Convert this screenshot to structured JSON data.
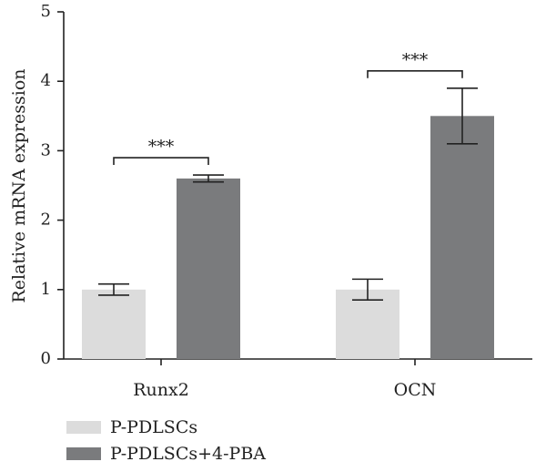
{
  "chart_data": {
    "type": "bar",
    "categories": [
      "Runx2",
      "OCN"
    ],
    "series": [
      {
        "name": "P-PDLSCs",
        "values": [
          1.0,
          1.0
        ],
        "errors": [
          0.08,
          0.15
        ],
        "color": "#dcdcdc"
      },
      {
        "name": "P-PDLSCs+4-PBA",
        "values": [
          2.6,
          3.5
        ],
        "errors": [
          0.05,
          0.4
        ],
        "color": "#7a7b7d"
      }
    ],
    "xlabel": "",
    "ylabel": "Relative mRNA expression",
    "ylim": [
      0,
      5
    ],
    "yticks": [
      "0",
      "1",
      "2",
      "3",
      "4",
      "5"
    ],
    "significance": [
      {
        "category": "Runx2",
        "label": "***",
        "y": 2.9
      },
      {
        "category": "OCN",
        "label": "***",
        "y": 4.15
      }
    ],
    "legend_position": "bottom-left",
    "grid": false
  }
}
